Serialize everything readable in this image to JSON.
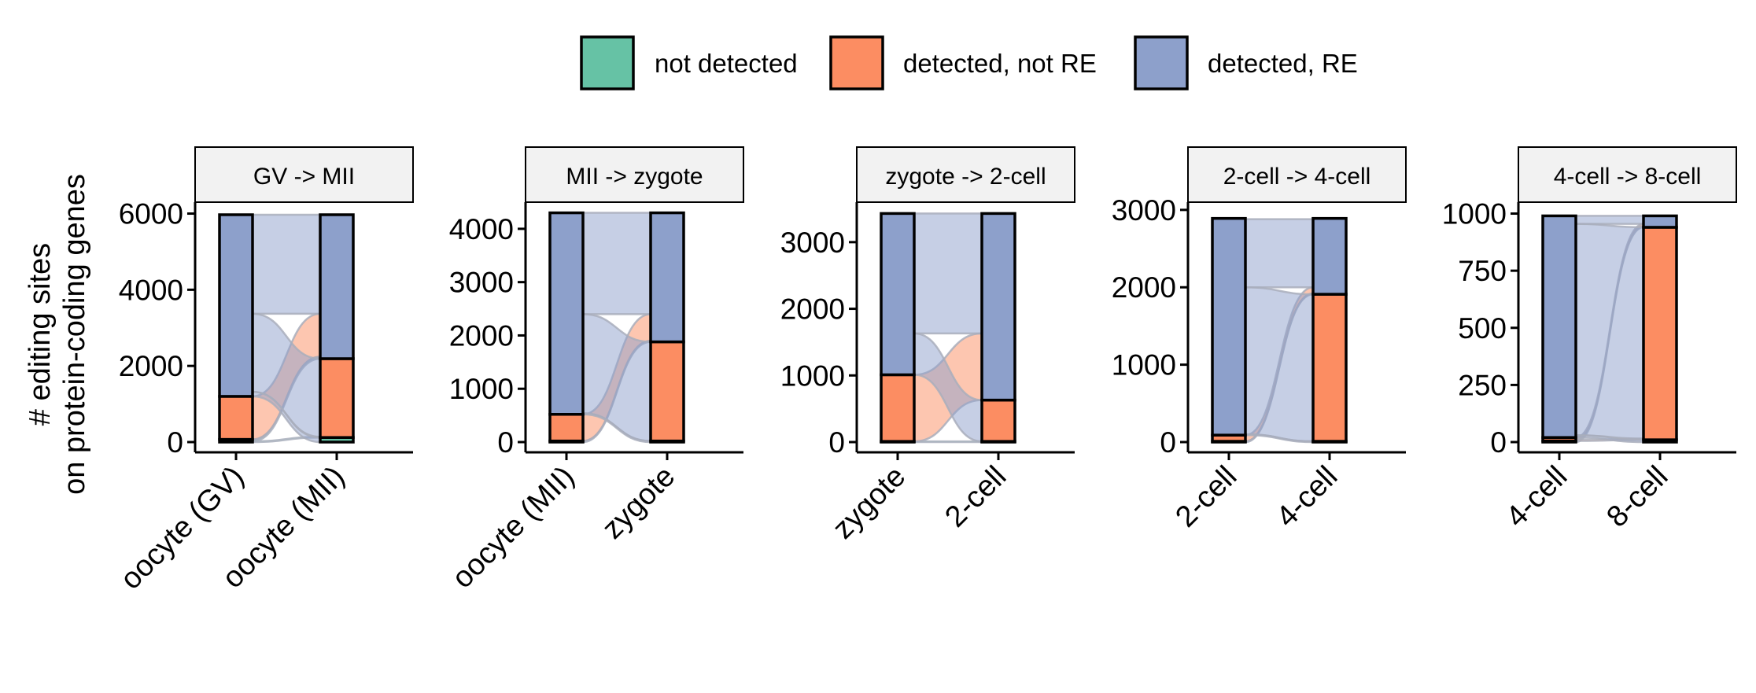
{
  "colors": {
    "not_detected": "#66c2a5",
    "detected_not_re": "#fc8d62",
    "detected_re": "#8da0cb",
    "strip_bg": "#f2f2f2",
    "flow_stroke": "#a9aebc"
  },
  "legend": [
    {
      "key": "not_detected",
      "label": "not detected"
    },
    {
      "key": "detected_not_re",
      "label": "detected, not RE"
    },
    {
      "key": "detected_re",
      "label": "detected, RE"
    }
  ],
  "chart_data": {
    "type": "alluvial",
    "ylabel_lines": [
      "# editing sites",
      "on protein-coding genes"
    ],
    "categories_order": [
      "not_detected",
      "detected_not_re",
      "detected_re"
    ],
    "panels": [
      {
        "title": "GV -> MII",
        "ylim": [
          0,
          6300
        ],
        "yticks": [
          0,
          2000,
          4000,
          6000
        ],
        "x": [
          "oocyte (GV)",
          "oocyte (MII)"
        ],
        "stacks": [
          {
            "detected_re": 4770,
            "detected_not_re": 1130,
            "not_detected": 70
          },
          {
            "detected_re": 3780,
            "detected_not_re": 2070,
            "not_detected": 120
          }
        ],
        "flows": [
          {
            "from": "detected_re",
            "to": "detected_re",
            "value": 2600
          },
          {
            "from": "detected_re",
            "to": "detected_not_re",
            "value": 2050
          },
          {
            "from": "detected_re",
            "to": "not_detected",
            "value": 120
          },
          {
            "from": "detected_not_re",
            "to": "detected_re",
            "value": 1130
          },
          {
            "from": "not_detected",
            "to": "detected_re",
            "value": 50
          },
          {
            "from": "not_detected",
            "to": "detected_not_re",
            "value": 20
          }
        ]
      },
      {
        "title": "MII -> zygote",
        "ylim": [
          0,
          4500
        ],
        "yticks": [
          0,
          1000,
          2000,
          3000,
          4000
        ],
        "x": [
          "oocyte (MII)",
          "zygote"
        ],
        "stacks": [
          {
            "detected_re": 3780,
            "detected_not_re": 500,
            "not_detected": 20
          },
          {
            "detected_re": 2420,
            "detected_not_re": 1860,
            "not_detected": 20
          }
        ],
        "flows": [
          {
            "from": "detected_re",
            "to": "detected_re",
            "value": 1900
          },
          {
            "from": "detected_re",
            "to": "detected_not_re",
            "value": 1860
          },
          {
            "from": "detected_re",
            "to": "not_detected",
            "value": 20
          },
          {
            "from": "detected_not_re",
            "to": "detected_re",
            "value": 500
          },
          {
            "from": "not_detected",
            "to": "detected_re",
            "value": 20
          }
        ]
      },
      {
        "title": "zygote -> 2-cell",
        "ylim": [
          0,
          3600
        ],
        "yticks": [
          0,
          1000,
          2000,
          3000
        ],
        "x": [
          "zygote",
          "2-cell"
        ],
        "stacks": [
          {
            "detected_re": 2420,
            "detected_not_re": 1000,
            "not_detected": 10
          },
          {
            "detected_re": 2800,
            "detected_not_re": 620,
            "not_detected": 10
          }
        ],
        "flows": [
          {
            "from": "detected_re",
            "to": "detected_re",
            "value": 1800
          },
          {
            "from": "detected_re",
            "to": "detected_not_re",
            "value": 620
          },
          {
            "from": "detected_not_re",
            "to": "detected_re",
            "value": 1000
          },
          {
            "from": "not_detected",
            "to": "not_detected",
            "value": 10
          }
        ]
      },
      {
        "title": "2-cell -> 4-cell",
        "ylim": [
          0,
          3100
        ],
        "yticks": [
          0,
          1000,
          2000,
          3000
        ],
        "x": [
          "2-cell",
          "4-cell"
        ],
        "stacks": [
          {
            "detected_re": 2800,
            "detected_not_re": 80,
            "not_detected": 10
          },
          {
            "detected_re": 980,
            "detected_not_re": 1900,
            "not_detected": 10
          }
        ],
        "flows": [
          {
            "from": "detected_re",
            "to": "detected_re",
            "value": 880
          },
          {
            "from": "detected_re",
            "to": "detected_not_re",
            "value": 1900
          },
          {
            "from": "detected_re",
            "to": "not_detected",
            "value": 10
          },
          {
            "from": "detected_not_re",
            "to": "detected_re",
            "value": 80
          },
          {
            "from": "not_detected",
            "to": "detected_re",
            "value": 10
          }
        ]
      },
      {
        "title": "4-cell -> 8-cell",
        "ylim": [
          0,
          1050
        ],
        "yticks": [
          0,
          250,
          500,
          750,
          1000
        ],
        "x": [
          "4-cell",
          "8-cell"
        ],
        "yticklabels": [
          "0",
          "250",
          "500",
          "750",
          "1000"
        ],
        "stacks": [
          {
            "detected_re": 970,
            "detected_not_re": 15,
            "not_detected": 5
          },
          {
            "detected_re": 50,
            "detected_not_re": 930,
            "not_detected": 10
          }
        ],
        "flows": [
          {
            "from": "detected_re",
            "to": "detected_re",
            "value": 35
          },
          {
            "from": "detected_re",
            "to": "detected_not_re",
            "value": 925
          },
          {
            "from": "detected_re",
            "to": "not_detected",
            "value": 10
          },
          {
            "from": "detected_not_re",
            "to": "detected_re",
            "value": 10
          },
          {
            "from": "detected_not_re",
            "to": "detected_not_re",
            "value": 5
          },
          {
            "from": "not_detected",
            "to": "detected_re",
            "value": 5
          }
        ]
      }
    ]
  }
}
